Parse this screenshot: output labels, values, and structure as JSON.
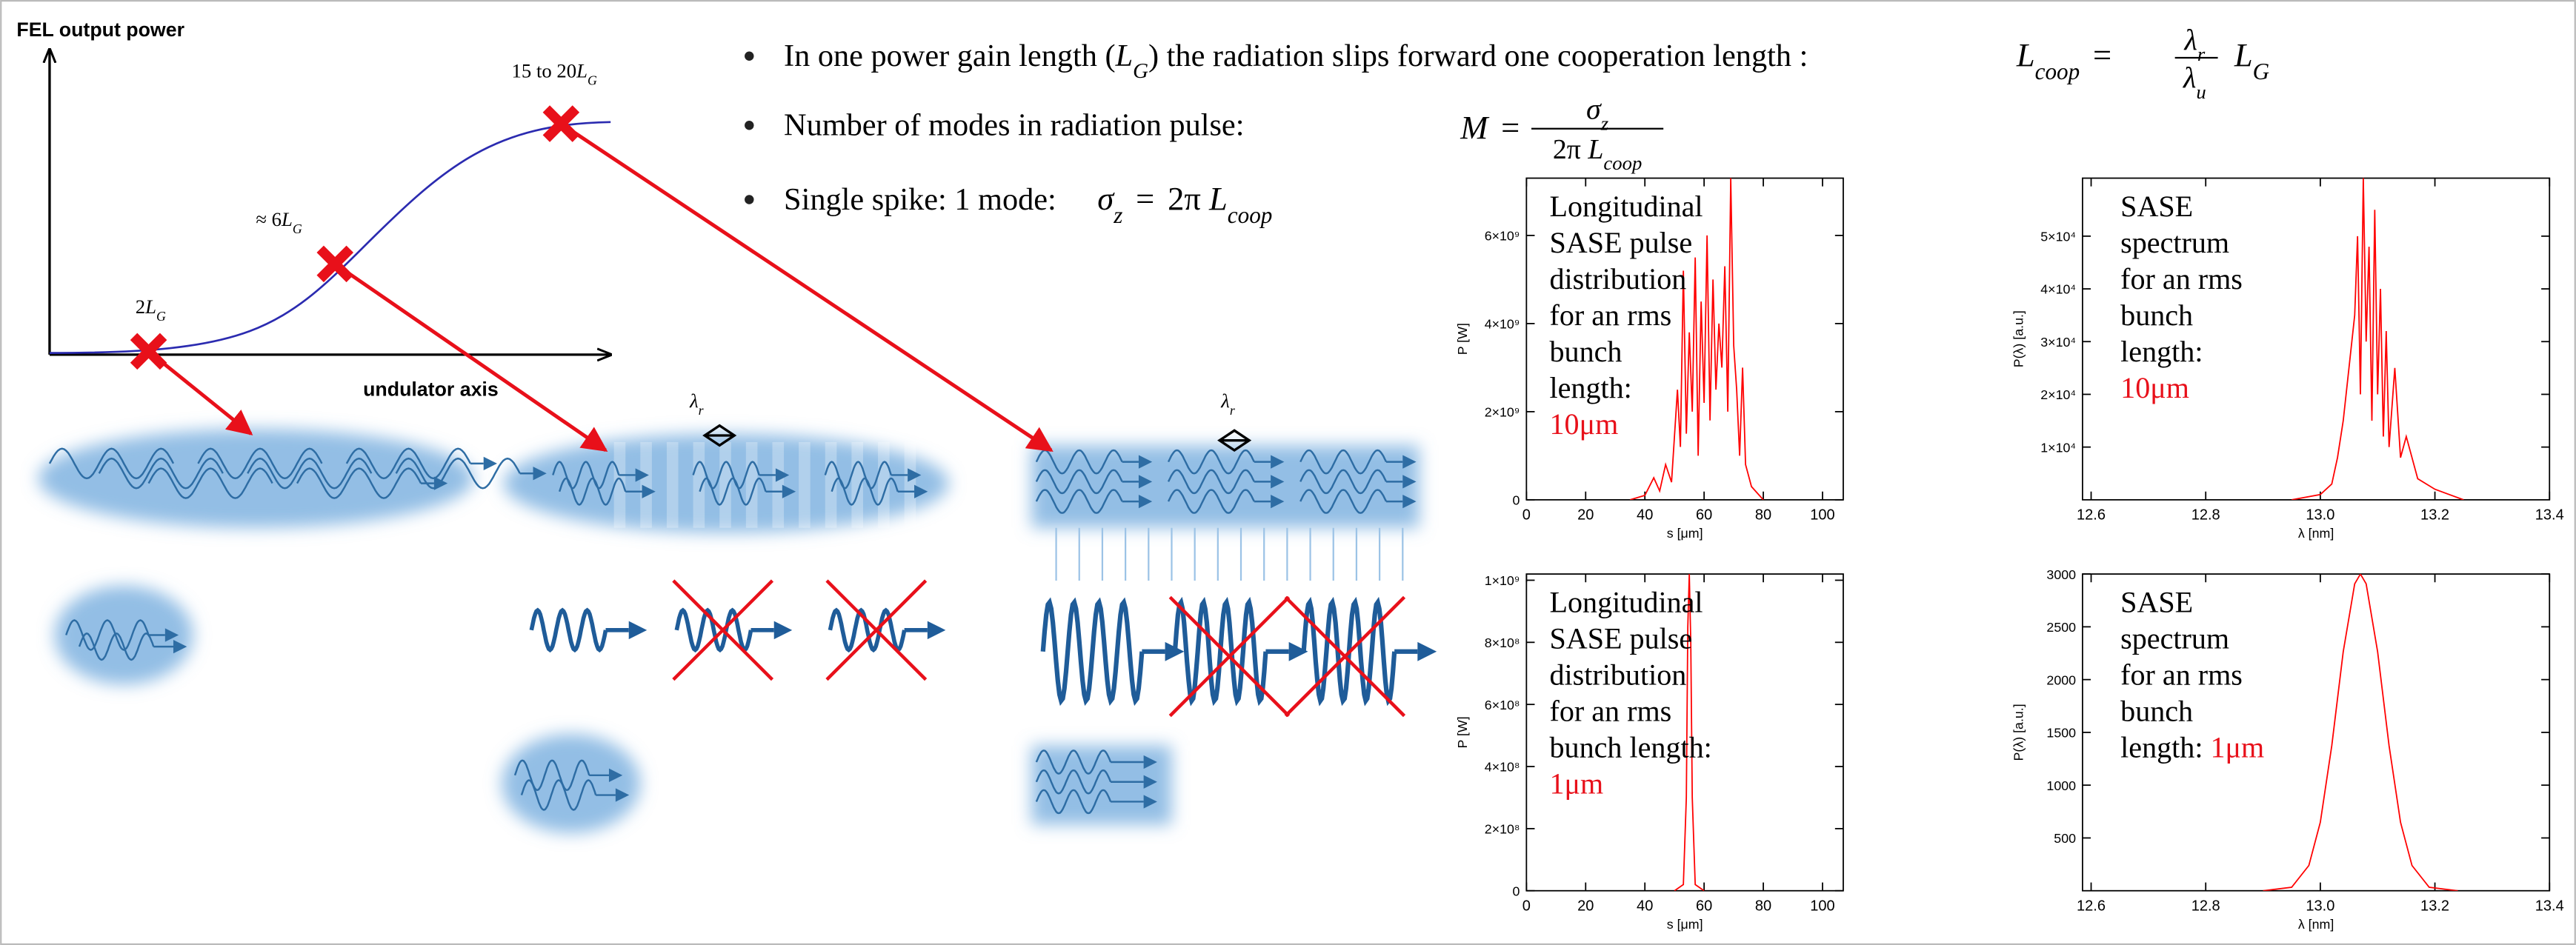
{
  "diagram": {
    "y_axis_label": "FEL output power",
    "x_axis_label": "undulator axis",
    "points": [
      {
        "pre": "2",
        "sym": "L",
        "sub": "G"
      },
      {
        "pre": "≈ 6",
        "sym": "L",
        "sub": "G"
      },
      {
        "pre": "15 to 20",
        "sym": "L",
        "sub": "G"
      }
    ],
    "wavelength_labels": [
      {
        "sym": "λ",
        "sub": "r"
      },
      {
        "sym": "λ",
        "sub": "r"
      }
    ]
  },
  "bullets": [
    {
      "t1": "In one power gain length (",
      "L": "L",
      "G": "G",
      "t2": ") the radiation slips forward one cooperation length :",
      "lhs": "L",
      "lhs_sub": "coop",
      "eq": "=",
      "num": "λ",
      "num_sub": "r",
      "den": "λ",
      "den_sub": "u",
      "rhs": "L",
      "rhs_sub": "G"
    },
    {
      "t1": "Number of modes in radiation pulse:",
      "lhs": "M",
      "eq": "=",
      "num": "σ",
      "num_sub": "z",
      "den_pre": "2π ",
      "den": "L",
      "den_sub": "coop"
    },
    {
      "t1": "Single spike: 1 mode:",
      "lhs": "σ",
      "lhs_sub": "z",
      "eq": "=",
      "rhs_pre": "2π ",
      "rhs": "L",
      "rhs_sub": "coop"
    }
  ],
  "plots": [
    {
      "type": "line",
      "xlabel": "s [μm]",
      "ylabel": "P [W]",
      "color": "#ff0000",
      "xlim": [
        0,
        107
      ],
      "ylim": [
        0,
        7300000000
      ],
      "xticks": [
        0,
        20,
        40,
        60,
        80,
        100
      ],
      "yticks": [
        0,
        {
          "value": 2000000000,
          "label": "2×10⁹"
        },
        {
          "value": 4000000000,
          "label": "4×10⁹"
        },
        {
          "value": 6000000000,
          "label": "6×10⁹"
        }
      ],
      "x": [
        35,
        40,
        43,
        45,
        47,
        49,
        51,
        52,
        53,
        54,
        55,
        56,
        57,
        58,
        59,
        60,
        61,
        62,
        63,
        64,
        65,
        66,
        67,
        68,
        69,
        70,
        71,
        72,
        73,
        74,
        76,
        80
      ],
      "values": [
        0,
        100000000,
        500000000,
        200000000,
        800000000,
        400000000,
        2500000000,
        1200000000,
        5200000000,
        1500000000,
        3800000000,
        2000000000,
        5500000000,
        1000000000,
        4500000000,
        2200000000,
        6000000000,
        1800000000,
        5000000000,
        2500000000,
        4000000000,
        3000000000,
        5300000000,
        2000000000,
        7300000000,
        3500000000,
        2500000000,
        1000000000,
        3000000000,
        800000000,
        300000000,
        0
      ],
      "note": [
        [
          {
            "text": "Longitudinal"
          }
        ],
        [
          {
            "text": "SASE pulse"
          }
        ],
        [
          {
            "text": "distribution"
          }
        ],
        [
          {
            "text": "for an rms"
          }
        ],
        [
          {
            "text": "bunch"
          }
        ],
        [
          {
            "text": "length:"
          }
        ],
        [
          {
            "text": "10μm",
            "color": "#e8101a"
          }
        ]
      ]
    },
    {
      "type": "line",
      "xlabel": "λ [nm]",
      "ylabel": "P(λ) [a.u.]",
      "color": "#ff0000",
      "xlim": [
        12.585,
        13.4
      ],
      "ylim": [
        0,
        61000
      ],
      "xticks": [
        12.6,
        12.8,
        {
          "value": 13,
          "label": "13.0"
        },
        13.2,
        13.4
      ],
      "yticks": [
        {
          "value": 10000,
          "label": "1×10⁴"
        },
        {
          "value": 20000,
          "label": "2×10⁴"
        },
        {
          "value": 30000,
          "label": "3×10⁴"
        },
        {
          "value": 40000,
          "label": "4×10⁴"
        },
        {
          "value": 50000,
          "label": "5×10⁴"
        }
      ],
      "x": [
        12.95,
        13.0,
        13.02,
        13.03,
        13.04,
        13.05,
        13.06,
        13.065,
        13.07,
        13.075,
        13.08,
        13.085,
        13.09,
        13.095,
        13.1,
        13.105,
        13.11,
        13.115,
        13.12,
        13.13,
        13.14,
        13.15,
        13.17,
        13.2,
        13.25
      ],
      "values": [
        0,
        1000,
        3000,
        8000,
        15000,
        25000,
        35000,
        50000,
        20000,
        61000,
        30000,
        48000,
        15000,
        55000,
        20000,
        40000,
        12000,
        32000,
        10000,
        25000,
        8000,
        12000,
        4000,
        2000,
        0
      ],
      "note": [
        [
          {
            "text": "SASE"
          }
        ],
        [
          {
            "text": "spectrum"
          }
        ],
        [
          {
            "text": "for an rms"
          }
        ],
        [
          {
            "text": "bunch"
          }
        ],
        [
          {
            "text": "length:"
          }
        ],
        [
          {
            "text": "10μm",
            "color": "#e8101a"
          }
        ]
      ]
    },
    {
      "type": "line",
      "xlabel": "s [μm]",
      "ylabel": "P [W]",
      "color": "#ff0000",
      "xlim": [
        0,
        107
      ],
      "ylim": [
        0,
        1020000000
      ],
      "xticks": [
        0,
        20,
        40,
        60,
        80,
        100
      ],
      "yticks": [
        0,
        {
          "value": 200000000,
          "label": "2×10⁸"
        },
        {
          "value": 400000000,
          "label": "4×10⁸"
        },
        {
          "value": 600000000,
          "label": "6×10⁸"
        },
        {
          "value": 800000000,
          "label": "8×10⁸"
        },
        {
          "value": 1000000000,
          "label": "1×10⁹"
        }
      ],
      "x": [
        50,
        53,
        54,
        54.5,
        55,
        55.5,
        56,
        57,
        60
      ],
      "values": [
        0,
        20000000,
        300000000,
        850000000,
        1020000000,
        800000000,
        300000000,
        20000000,
        0
      ],
      "note": [
        [
          {
            "text": "Longitudinal"
          }
        ],
        [
          {
            "text": "SASE pulse"
          }
        ],
        [
          {
            "text": "distribution"
          }
        ],
        [
          {
            "text": "for an rms"
          }
        ],
        [
          {
            "text": "bunch length:"
          }
        ],
        [
          {
            "text": "1μm",
            "color": "#e8101a"
          }
        ]
      ]
    },
    {
      "type": "line",
      "xlabel": "λ [nm]",
      "ylabel": "P(λ) [a.u.]",
      "color": "#ff0000",
      "xlim": [
        12.585,
        13.4
      ],
      "ylim": [
        0,
        3000
      ],
      "xticks": [
        12.6,
        12.8,
        {
          "value": 13,
          "label": "13.0"
        },
        13.2,
        13.4
      ],
      "yticks": [
        500,
        1000,
        1500,
        2000,
        2500,
        3000
      ],
      "x": [
        12.9,
        12.95,
        12.98,
        13.0,
        13.02,
        13.04,
        13.06,
        13.07,
        13.08,
        13.1,
        13.12,
        13.14,
        13.16,
        13.19,
        13.24
      ],
      "values": [
        0,
        33,
        239,
        648,
        1374,
        2264,
        2907,
        3000,
        2907,
        2264,
        1374,
        648,
        239,
        33,
        0
      ],
      "note": [
        [
          {
            "text": "SASE"
          }
        ],
        [
          {
            "text": "spectrum"
          }
        ],
        [
          {
            "text": "for an rms"
          }
        ],
        [
          {
            "text": "bunch"
          }
        ],
        [
          {
            "text": "length: "
          },
          {
            "text": "1μm",
            "color": "#e8101a"
          }
        ]
      ]
    }
  ]
}
